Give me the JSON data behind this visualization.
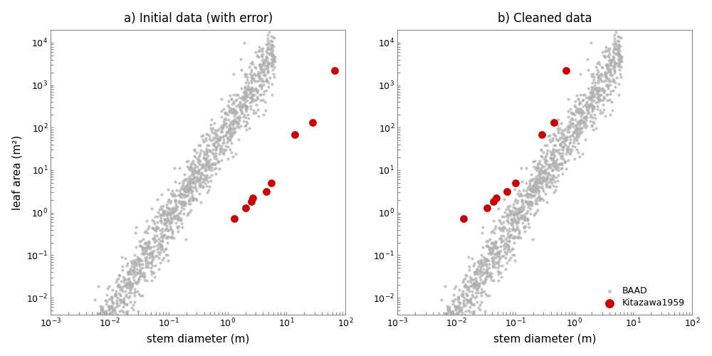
{
  "title_left": "a) Initial data (with error)",
  "title_right": "b) Cleaned data",
  "xlabel": "stem diameter (m)",
  "ylabel": "leaf area (m²)",
  "xlim_left": [
    0.001,
    100.0
  ],
  "ylim_left": [
    0.004,
    20000.0
  ],
  "xlim_right": [
    0.001,
    100.0
  ],
  "ylim_right": [
    0.004,
    20000.0
  ],
  "baad_color": "#b0b0b0",
  "kitazawa_color": "#cc0000",
  "kitazawa_error_x": [
    1.3,
    2.0,
    2.5,
    2.7,
    4.5,
    5.5,
    14.0,
    28.0,
    65.0
  ],
  "kitazawa_error_y": [
    0.72,
    1.3,
    1.8,
    2.2,
    3.2,
    5.0,
    70.0,
    130.0,
    2200.0
  ],
  "kitazawa_clean_x": [
    0.013,
    0.033,
    0.042,
    0.048,
    0.072,
    0.1,
    0.28,
    0.45,
    0.72
  ],
  "kitazawa_clean_y": [
    0.72,
    1.3,
    1.8,
    2.2,
    3.2,
    5.0,
    70.0,
    130.0,
    2200.0
  ],
  "background_color": "#ffffff",
  "seed_baad": 42,
  "n_baad": 1800
}
